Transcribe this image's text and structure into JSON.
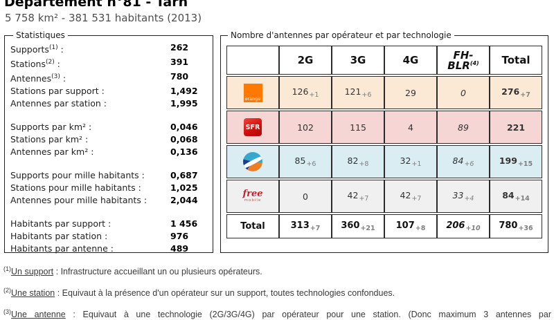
{
  "header": {
    "title": "Département n°81 - Tarn",
    "subtitle": "5 758 km² - 381 531 habitants (2013)"
  },
  "stats": {
    "legend": "Statistiques",
    "colon": " :",
    "groups": [
      [
        {
          "label": "Supports",
          "sup": "(1)",
          "value": "262"
        },
        {
          "label": "Stations",
          "sup": "(2)",
          "value": "391"
        },
        {
          "label": "Antennes",
          "sup": "(3)",
          "value": "780"
        },
        {
          "label": "Stations par support",
          "sup": "",
          "value": "1,492"
        },
        {
          "label": "Antennes par station",
          "sup": "",
          "value": "1,995"
        }
      ],
      [
        {
          "label": "Supports par km²",
          "sup": "",
          "value": "0,046"
        },
        {
          "label": "Stations par km²",
          "sup": "",
          "value": "0,068"
        },
        {
          "label": "Antennes par km²",
          "sup": "",
          "value": "0,136"
        }
      ],
      [
        {
          "label": "Supports pour mille habitants",
          "sup": "",
          "value": "0,687"
        },
        {
          "label": "Stations pour mille habitants",
          "sup": "",
          "value": "1,025"
        },
        {
          "label": "Antennes pour mille habitants",
          "sup": "",
          "value": "2,044"
        }
      ],
      [
        {
          "label": "Habitants par support",
          "sup": "",
          "value": "1 456"
        },
        {
          "label": "Habitants par station",
          "sup": "",
          "value": "976"
        },
        {
          "label": "Habitants par antenne",
          "sup": "",
          "value": "489"
        }
      ]
    ]
  },
  "antennas": {
    "legend": "Nombre d'antennes par opérateur et par technologie",
    "headers": [
      {
        "lines": [
          "2G"
        ],
        "sup": "",
        "italic": false
      },
      {
        "lines": [
          "3G"
        ],
        "sup": "",
        "italic": false
      },
      {
        "lines": [
          "4G"
        ],
        "sup": "",
        "italic": false
      },
      {
        "lines": [
          "FH-",
          "BLR"
        ],
        "sup": "(4)",
        "italic": true
      },
      {
        "lines": [
          "Total"
        ],
        "sup": "",
        "italic": false
      }
    ],
    "rows": [
      {
        "operator": "Orange",
        "logo": "orange",
        "bg": "#fbe9d6",
        "cells": [
          {
            "v": "126",
            "sub": "+1"
          },
          {
            "v": "121",
            "sub": "+6"
          },
          {
            "v": "29"
          },
          {
            "v": "0",
            "italic": true
          },
          {
            "v": "276",
            "sub": "+7",
            "bold": true
          }
        ]
      },
      {
        "operator": "SFR",
        "logo": "sfr",
        "bg": "#f6d6d4",
        "cells": [
          {
            "v": "102"
          },
          {
            "v": "115"
          },
          {
            "v": "4"
          },
          {
            "v": "89",
            "italic": true
          },
          {
            "v": "221",
            "bold": true
          }
        ]
      },
      {
        "operator": "Bouygues Telecom",
        "logo": "bouygues",
        "bg": "#d9edf2",
        "cells": [
          {
            "v": "85",
            "sub": "+6"
          },
          {
            "v": "82",
            "sub": "+8"
          },
          {
            "v": "32",
            "sub": "+1"
          },
          {
            "v": "84",
            "sub": "+6",
            "italic": true
          },
          {
            "v": "199",
            "sub": "+15",
            "bold": true
          }
        ]
      },
      {
        "operator": "Free Mobile",
        "logo": "free",
        "bg": "#f0f0f0",
        "cells": [
          {
            "v": "0"
          },
          {
            "v": "42",
            "sub": "+7"
          },
          {
            "v": "42",
            "sub": "+7"
          },
          {
            "v": "33",
            "sub": "+4",
            "italic": true
          },
          {
            "v": "84",
            "sub": "+14",
            "bold": true
          }
        ]
      }
    ],
    "total_row": {
      "label": "Total",
      "cells": [
        {
          "v": "313",
          "sub": "+7",
          "bold": true
        },
        {
          "v": "360",
          "sub": "+21",
          "bold": true
        },
        {
          "v": "107",
          "sub": "+8",
          "bold": true
        },
        {
          "v": "206",
          "sub": "+10",
          "bold": true,
          "italic": true
        },
        {
          "v": "780",
          "sub": "+36",
          "bold": true
        }
      ]
    },
    "logos": {
      "orange": {
        "text": "orange",
        "color": "#ff7900"
      },
      "sfr": {
        "text": "SFR",
        "color": "#d40f0f"
      },
      "bouygues": {
        "colors": [
          "#35a8cd",
          "#ef7d23",
          "#1d3d8f"
        ]
      },
      "free": {
        "text": "free",
        "sub": "mobile",
        "color": "#cd1d25"
      }
    }
  },
  "footnotes": [
    {
      "sup": "(1)",
      "term": "Un support",
      "text": " : Infrastructure accueillant un ou plusieurs opérateurs."
    },
    {
      "sup": "(2)",
      "term": "Une station",
      "text": " : Equivaut à la présence d'un opérateur sur un support, toutes technologies confondues."
    },
    {
      "sup": "(3)",
      "term": "Une antenne",
      "text": " : Equivaut à une technologie (2G/3G/4G) par opérateur pour une station.  (Donc maximum 3 antennes par"
    }
  ]
}
